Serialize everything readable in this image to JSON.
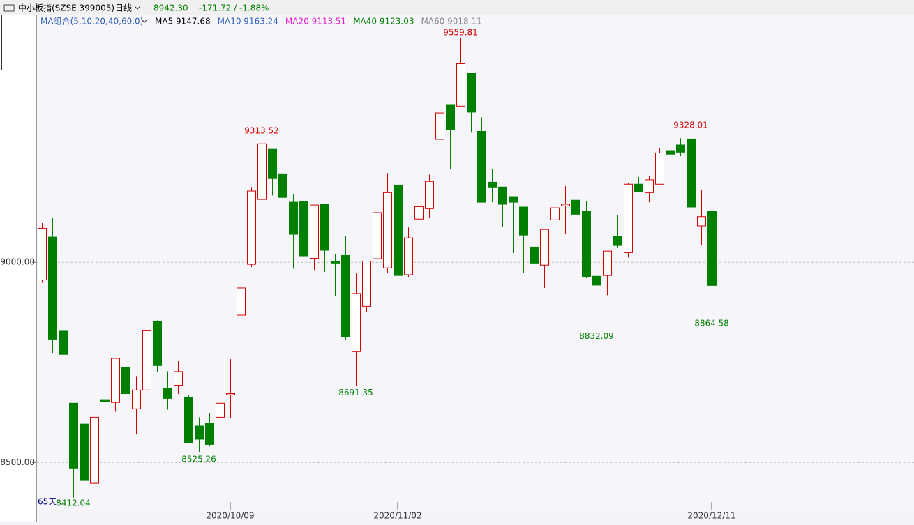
{
  "toolbar": {
    "name": "中小板指(SZSE 399005)",
    "period": "日线",
    "price": "8942.30",
    "change": "-171.72 / -1.88%"
  },
  "chart_data": {
    "type": "candlestick",
    "ma_legend": {
      "title": "MA组合(5,10,20,40,60,0)",
      "items": [
        {
          "text": "MA5 9147.68",
          "color": "#000000"
        },
        {
          "text": "MA10 9163.24",
          "color": "#2f5fbf"
        },
        {
          "text": "MA20 9113.51",
          "color": "#e020d0"
        },
        {
          "text": "MA40 9123.03",
          "color": "#008000"
        },
        {
          "text": "MA60 9018.11",
          "color": "#888888"
        }
      ]
    },
    "range_label": "65天",
    "up_color": "#d40000",
    "down_color": "#008000",
    "categories": [
      null,
      null,
      null,
      null,
      null,
      null,
      null,
      null,
      null,
      null,
      null,
      null,
      null,
      null,
      null,
      null,
      null,
      null,
      "2020/10/09",
      null,
      null,
      null,
      null,
      null,
      null,
      null,
      null,
      null,
      null,
      null,
      null,
      null,
      null,
      null,
      "2020/11/02",
      null,
      null,
      null,
      null,
      null,
      null,
      null,
      null,
      null,
      null,
      null,
      null,
      null,
      null,
      null,
      null,
      null,
      null,
      null,
      null,
      null,
      null,
      null,
      null,
      null,
      null,
      null,
      null,
      null,
      "2020/12/11"
    ],
    "open": [
      8956,
      9063,
      8828,
      8648,
      8596,
      8448,
      8657,
      8650,
      8737,
      8634,
      8681,
      8852,
      8686,
      8693,
      8662,
      8591,
      8598,
      8613,
      8669,
      8868,
      8995,
      9157,
      9284,
      9221,
      9150,
      9152,
      9010,
      9145,
      9002,
      9017,
      8777,
      8890,
      9009,
      8986,
      9193,
      8969,
      9108,
      9134,
      9307,
      9394,
      9390,
      9472,
      9327,
      9200,
      9188,
      9164,
      9138,
      9038,
      8993,
      9106,
      9141,
      9155,
      9127,
      8965,
      8967,
      9064,
      9024,
      9195,
      9174,
      9195,
      9279,
      9293,
      9308,
      9091,
      9127
    ],
    "high": [
      9098,
      9111,
      8848,
      8648,
      8657,
      8613,
      8718,
      8760,
      8760,
      8714,
      8829,
      8855,
      8728,
      8753,
      8669,
      8613,
      8624,
      8685,
      8758,
      8963,
      9188,
      9313.52,
      9284,
      9240,
      9171,
      9172,
      9143,
      9145,
      9021,
      9066,
      8972,
      9003,
      9164,
      9223,
      9197,
      9087,
      9165,
      9219,
      9394,
      9394,
      9559.81,
      9472,
      9362,
      9232,
      9188,
      9165,
      9138,
      9064,
      9082,
      9145,
      9190,
      9162,
      9153,
      8991,
      9028,
      9117,
      9199,
      9213,
      9216,
      9286,
      9308,
      9310,
      9328.01,
      9181,
      9127
    ],
    "low": [
      8949,
      8772,
      8667,
      8412.04,
      8436,
      8448,
      8584,
      8627,
      8622,
      8570,
      8671,
      8727,
      8632,
      8671,
      8549,
      8525.26,
      8540,
      8589,
      8610,
      8841,
      8988,
      9122,
      9167,
      9155,
      8984,
      8998,
      8981,
      8976,
      8915,
      8807,
      8691.35,
      8876,
      8949,
      8974,
      8941,
      8962,
      9042,
      9110,
      9240,
      9232,
      9390,
      9324,
      9150,
      9150,
      9089,
      9023,
      8974,
      8944,
      8936,
      9077,
      9070,
      9084,
      8960,
      8832.09,
      8918,
      9037,
      9012,
      9176,
      9150,
      9195,
      9244,
      9265,
      9138,
      9042,
      8864.58
    ],
    "close": [
      9085,
      8808,
      8770,
      8486,
      8455,
      8613,
      8652,
      8760,
      8672,
      8681,
      8829,
      8742,
      8660,
      8727,
      8549,
      8558,
      8545,
      8648,
      8672,
      8936,
      9178,
      9296,
      9209,
      9162,
      9070,
      9016,
      9143,
      9030,
      8998,
      8814,
      8922,
      9003,
      9124,
      9174,
      8967,
      9061,
      9139,
      9202,
      9373,
      9331,
      9496,
      9375,
      9150,
      9188,
      9145,
      9150,
      9068,
      8998,
      9082,
      9136,
      9145,
      9120,
      8963,
      8943,
      9028,
      9042,
      9195,
      9176,
      9206,
      9273,
      9270,
      9275,
      9138,
      9114.02,
      8942.3
    ],
    "high_labels": [
      null,
      null,
      null,
      null,
      null,
      null,
      null,
      null,
      null,
      null,
      null,
      null,
      null,
      null,
      null,
      null,
      null,
      null,
      null,
      null,
      null,
      "9313.52",
      null,
      null,
      null,
      null,
      null,
      null,
      null,
      null,
      null,
      null,
      null,
      null,
      null,
      null,
      null,
      null,
      null,
      null,
      "9559.81",
      null,
      null,
      null,
      null,
      null,
      null,
      null,
      null,
      null,
      null,
      null,
      null,
      null,
      null,
      null,
      null,
      null,
      null,
      null,
      null,
      null,
      "9328.01",
      null,
      null
    ],
    "low_labels": [
      null,
      null,
      null,
      "8412.04",
      null,
      null,
      null,
      null,
      null,
      null,
      null,
      null,
      null,
      null,
      null,
      "8525.26",
      null,
      null,
      null,
      null,
      null,
      null,
      null,
      null,
      null,
      null,
      null,
      null,
      null,
      null,
      "8691.35",
      null,
      null,
      null,
      null,
      null,
      null,
      null,
      null,
      null,
      null,
      null,
      null,
      null,
      null,
      null,
      null,
      null,
      null,
      null,
      null,
      null,
      null,
      "8832.09",
      null,
      null,
      null,
      null,
      null,
      null,
      null,
      null,
      null,
      null,
      "8864.58"
    ],
    "ylim": [
      8382,
      9617
    ],
    "yticks": [
      {
        "value": 8500,
        "label": "8500.00"
      },
      {
        "value": 9000,
        "label": "9000.00"
      }
    ],
    "grid": true
  }
}
